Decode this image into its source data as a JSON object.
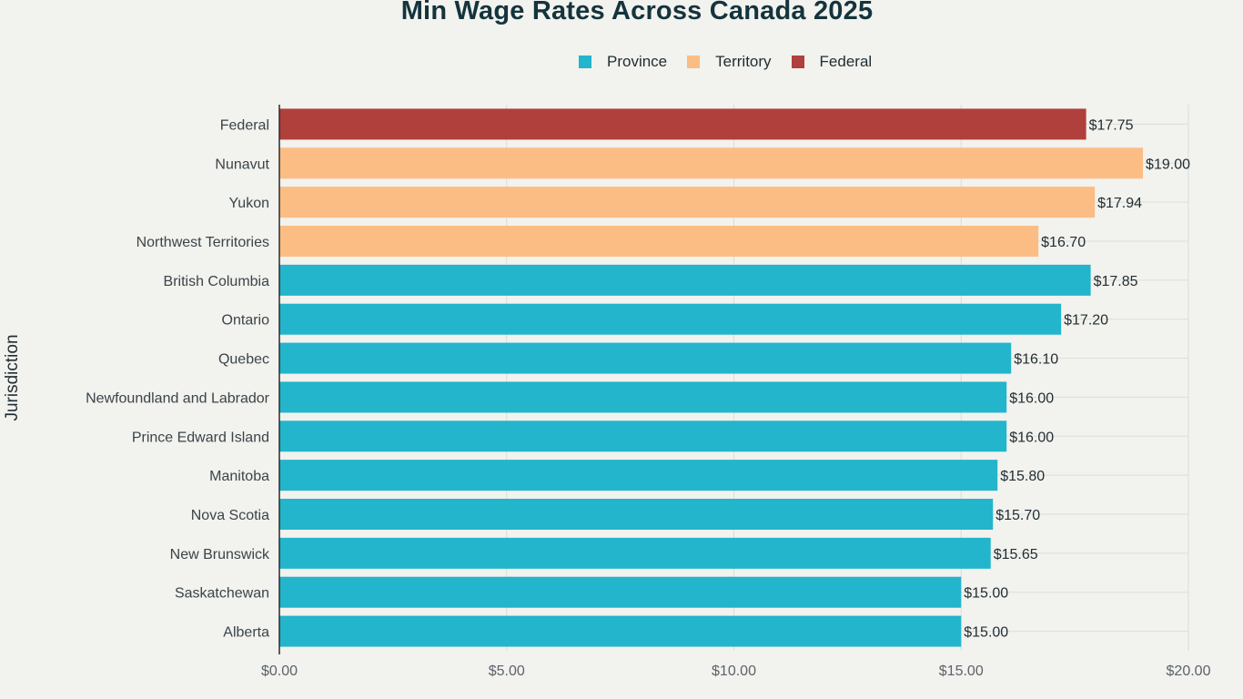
{
  "chart_data": {
    "type": "bar",
    "orientation": "horizontal",
    "title": "Min Wage Rates Across Canada 2025",
    "xlabel": "",
    "ylabel": "Jurisdiction",
    "xlim": [
      0,
      20
    ],
    "x_ticks": [
      "$0.00",
      "$5.00",
      "$10.00",
      "$15.00",
      "$20.00"
    ],
    "grid": true,
    "legend_placement": "top-center",
    "legend": [
      {
        "name": "Province",
        "color": "#22b5cc"
      },
      {
        "name": "Territory",
        "color": "#fcbd84"
      },
      {
        "name": "Federal",
        "color": "#b0403c"
      }
    ],
    "categories": [
      "Federal",
      "Nunavut",
      "Yukon",
      "Northwest Territories",
      "British Columbia",
      "Ontario",
      "Quebec",
      "Newfoundland and Labrador",
      "Prince Edward Island",
      "Manitoba",
      "Nova Scotia",
      "New Brunswick",
      "Saskatchewan",
      "Alberta"
    ],
    "values": [
      17.75,
      19.0,
      17.94,
      16.7,
      17.85,
      17.2,
      16.1,
      16.0,
      16.0,
      15.8,
      15.7,
      15.65,
      15.0,
      15.0
    ],
    "value_labels": [
      "$17.75",
      "$19.00",
      "$17.94",
      "$16.70",
      "$17.85",
      "$17.20",
      "$16.10",
      "$16.00",
      "$16.00",
      "$15.80",
      "$15.70",
      "$15.65",
      "$15.00",
      "$15.00"
    ],
    "groups": [
      "Federal",
      "Territory",
      "Territory",
      "Territory",
      "Province",
      "Province",
      "Province",
      "Province",
      "Province",
      "Province",
      "Province",
      "Province",
      "Province",
      "Province"
    ]
  }
}
